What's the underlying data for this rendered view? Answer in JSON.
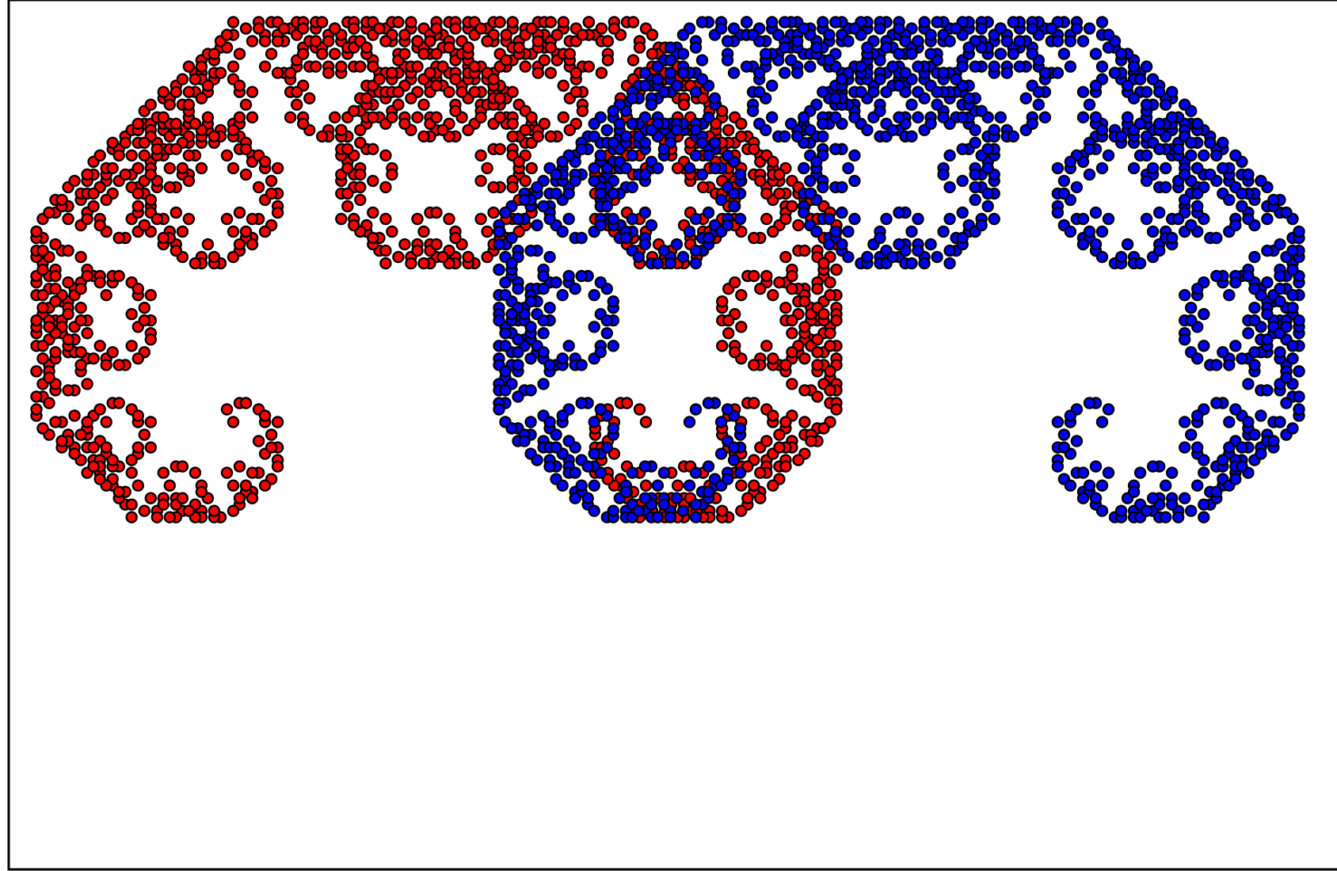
{
  "figure": {
    "background": "#ffffff",
    "frame_color": "#000000",
    "marker_outline": "#000000"
  },
  "curves": [
    {
      "id": "left-curve",
      "color": "#ff0000"
    },
    {
      "id": "right-curve",
      "color": "#0000ff"
    }
  ],
  "curve_data": {
    "type": "levy-c-curve-pair",
    "levels": 12,
    "markers": "circle"
  }
}
